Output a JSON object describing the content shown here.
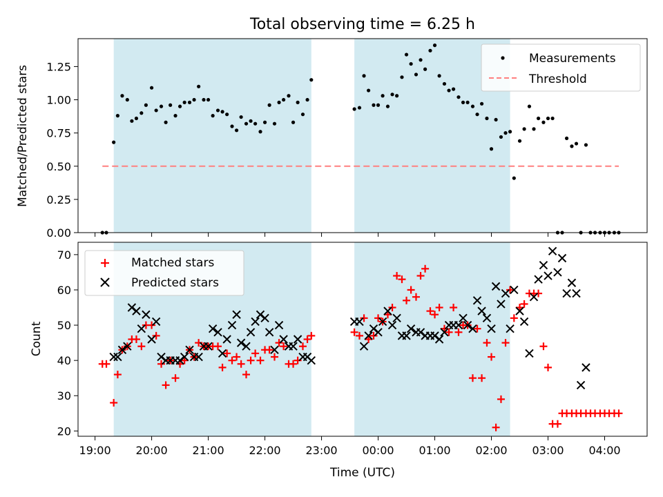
{
  "figure_title": "Total observing time = 6.25 h",
  "colors": {
    "shade": "#add8e6",
    "threshold": "#ff7f7f",
    "measurement": "#000000",
    "matched": "#ff0000",
    "predicted": "#000000"
  },
  "chart_data": [
    {
      "type": "scatter",
      "title": "Total observing time = 6.25 h",
      "ylabel": "Matched/Predicted stars",
      "xlabel": "",
      "ylim": [
        0,
        1.46
      ],
      "yticks": [
        0.0,
        0.25,
        0.5,
        0.75,
        1.0,
        1.25
      ],
      "ytick_labels": [
        "0.00",
        "0.25",
        "0.50",
        "0.75",
        "1.00",
        "1.25"
      ],
      "legend_position": "top-right",
      "series": [
        {
          "name": "Measurements",
          "marker": "dot",
          "x": [
            19.13,
            19.2,
            19.33,
            19.4,
            19.48,
            19.57,
            19.65,
            19.73,
            19.82,
            19.9,
            20.0,
            20.08,
            20.17,
            20.25,
            20.33,
            20.42,
            20.5,
            20.58,
            20.67,
            20.75,
            20.83,
            20.92,
            21.0,
            21.08,
            21.17,
            21.25,
            21.33,
            21.42,
            21.5,
            21.58,
            21.67,
            21.75,
            21.83,
            21.92,
            22.0,
            22.08,
            22.17,
            22.25,
            22.33,
            22.42,
            22.5,
            22.58,
            22.67,
            22.75,
            22.82,
            23.58,
            23.67,
            23.75,
            23.83,
            23.92,
            24.0,
            24.08,
            24.17,
            24.25,
            24.33,
            24.42,
            24.5,
            24.58,
            24.67,
            24.75,
            24.83,
            24.92,
            25.0,
            25.08,
            25.17,
            25.25,
            25.33,
            25.42,
            25.5,
            25.58,
            25.67,
            25.75,
            25.83,
            25.92,
            26.0,
            26.08,
            26.17,
            26.25,
            26.33,
            26.4,
            26.5,
            26.58,
            26.67,
            26.75,
            26.83,
            26.92,
            27.0,
            27.08,
            27.17,
            27.25,
            27.33,
            27.42,
            27.5,
            27.58,
            27.67,
            27.75,
            27.83,
            27.92,
            28.0,
            28.08,
            28.17,
            28.25
          ],
          "y": [
            0.0,
            0.0,
            0.68,
            0.88,
            1.03,
            1.0,
            0.84,
            0.86,
            0.9,
            0.96,
            1.09,
            0.92,
            0.95,
            0.83,
            0.96,
            0.88,
            0.95,
            0.98,
            0.98,
            1.0,
            1.1,
            1.0,
            1.0,
            0.88,
            0.92,
            0.91,
            0.89,
            0.8,
            0.77,
            0.87,
            0.82,
            0.84,
            0.82,
            0.76,
            0.83,
            0.96,
            0.82,
            0.98,
            1.0,
            1.03,
            0.83,
            0.98,
            0.89,
            1.0,
            1.15,
            0.93,
            0.94,
            1.18,
            1.07,
            0.96,
            0.96,
            1.03,
            0.95,
            1.04,
            1.03,
            1.17,
            1.34,
            1.27,
            1.19,
            1.3,
            1.23,
            1.37,
            1.41,
            1.18,
            1.12,
            1.07,
            1.08,
            1.02,
            0.98,
            0.98,
            0.95,
            0.89,
            0.97,
            0.86,
            0.63,
            0.85,
            0.72,
            0.75,
            0.76,
            0.41,
            0.69,
            0.78,
            0.95,
            0.78,
            0.86,
            0.83,
            0.86,
            0.86,
            0.0,
            0.0,
            0.71,
            0.65,
            0.67,
            0.0,
            0.66,
            0.0,
            0.0,
            0.0,
            0.0,
            0.0,
            0.0,
            0.0
          ]
        },
        {
          "name": "Threshold",
          "style": "dashed",
          "x": [
            19.13,
            28.25
          ],
          "y": [
            0.5,
            0.5
          ]
        }
      ]
    },
    {
      "type": "scatter",
      "ylabel": "Count",
      "xlabel": "Time (UTC)",
      "ylim": [
        18.5,
        73.5
      ],
      "yticks": [
        20,
        30,
        40,
        50,
        60,
        70
      ],
      "ytick_labels": [
        "20",
        "30",
        "40",
        "50",
        "60",
        "70"
      ],
      "legend_position": "top-left",
      "series": [
        {
          "name": "Matched stars",
          "marker": "plus",
          "x": [
            19.13,
            19.2,
            19.33,
            19.4,
            19.48,
            19.57,
            19.65,
            19.73,
            19.82,
            19.9,
            20.0,
            20.08,
            20.17,
            20.25,
            20.33,
            20.42,
            20.5,
            20.58,
            20.67,
            20.75,
            20.83,
            20.92,
            21.0,
            21.08,
            21.17,
            21.25,
            21.33,
            21.42,
            21.5,
            21.58,
            21.67,
            21.75,
            21.83,
            21.92,
            22.0,
            22.08,
            22.17,
            22.25,
            22.33,
            22.42,
            22.5,
            22.58,
            22.67,
            22.75,
            22.82,
            23.58,
            23.67,
            23.75,
            23.83,
            23.92,
            24.0,
            24.08,
            24.17,
            24.25,
            24.33,
            24.42,
            24.5,
            24.58,
            24.67,
            24.75,
            24.83,
            24.92,
            25.0,
            25.08,
            25.17,
            25.25,
            25.33,
            25.42,
            25.5,
            25.58,
            25.67,
            25.75,
            25.83,
            25.92,
            26.0,
            26.08,
            26.17,
            26.25,
            26.33,
            26.4,
            26.5,
            26.58,
            26.67,
            26.75,
            26.83,
            26.92,
            27.0,
            27.08,
            27.17,
            27.25,
            27.33,
            27.42,
            27.5,
            27.58,
            27.67,
            27.75,
            27.83,
            27.92,
            28.0,
            28.08,
            28.17,
            28.25
          ],
          "y": [
            39,
            39,
            28,
            36,
            43,
            44,
            46,
            46,
            44,
            50,
            50,
            47,
            39,
            33,
            40,
            35,
            39,
            40,
            43,
            41,
            45,
            44,
            44,
            44,
            44,
            38,
            42,
            40,
            41,
            39,
            36,
            40,
            42,
            40,
            43,
            43,
            41,
            45,
            44,
            39,
            39,
            40,
            44,
            46,
            47,
            48,
            47,
            52,
            46,
            47,
            52,
            51,
            53,
            55,
            64,
            63,
            57,
            60,
            58,
            64,
            66,
            54,
            53,
            55,
            49,
            48,
            55,
            48,
            50,
            50,
            35,
            49,
            35,
            45,
            41,
            21,
            29,
            45,
            60,
            52,
            55,
            56,
            59,
            59,
            59,
            44,
            38,
            22,
            22,
            25,
            25,
            25,
            25,
            25,
            25,
            25,
            25,
            25,
            25,
            25,
            25,
            25
          ],
          "y_note": "counts"
        },
        {
          "name": "Predicted stars",
          "marker": "x",
          "x": [
            19.33,
            19.4,
            19.48,
            19.57,
            19.65,
            19.73,
            19.82,
            19.9,
            20.0,
            20.08,
            20.17,
            20.25,
            20.33,
            20.42,
            20.5,
            20.58,
            20.67,
            20.75,
            20.83,
            20.92,
            21.0,
            21.08,
            21.17,
            21.25,
            21.33,
            21.42,
            21.5,
            21.58,
            21.67,
            21.75,
            21.83,
            21.92,
            22.0,
            22.08,
            22.17,
            22.25,
            22.33,
            22.42,
            22.5,
            22.58,
            22.67,
            22.75,
            22.82,
            23.58,
            23.67,
            23.75,
            23.83,
            23.92,
            24.0,
            24.08,
            24.17,
            24.25,
            24.33,
            24.42,
            24.5,
            24.58,
            24.67,
            24.75,
            24.83,
            24.92,
            25.0,
            25.08,
            25.17,
            25.25,
            25.33,
            25.42,
            25.5,
            25.58,
            25.67,
            25.75,
            25.83,
            25.92,
            26.0,
            26.08,
            26.17,
            26.25,
            26.33,
            26.4,
            26.5,
            26.58,
            26.67,
            26.75,
            26.83,
            26.92,
            27.0,
            27.08,
            27.17,
            27.25,
            27.33,
            27.42,
            27.5,
            27.58,
            27.67
          ],
          "y": [
            41,
            41,
            43,
            44,
            55,
            54,
            49,
            53,
            46,
            51,
            41,
            40,
            40,
            40,
            40,
            41,
            43,
            41,
            41,
            44,
            44,
            49,
            48,
            42,
            46,
            50,
            53,
            45,
            44,
            48,
            51,
            53,
            52,
            48,
            43,
            50,
            46,
            44,
            44,
            46,
            41,
            41,
            40,
            51,
            51,
            44,
            47,
            49,
            48,
            51,
            54,
            50,
            52,
            47,
            47,
            49,
            48,
            48,
            47,
            47,
            47,
            46,
            48,
            50,
            50,
            50,
            52,
            50,
            49,
            57,
            54,
            52,
            49,
            61,
            56,
            59,
            49,
            60,
            54,
            51,
            42,
            58,
            63,
            67,
            64,
            71,
            65,
            69,
            59,
            62,
            59,
            33,
            38
          ]
        }
      ]
    }
  ],
  "shaded_spans": [
    {
      "start": 19.33,
      "end": 22.82
    },
    {
      "start": 23.58,
      "end": 26.33
    }
  ],
  "x_axis": {
    "min": 18.7,
    "max": 28.75,
    "ticks": [
      19,
      20,
      21,
      22,
      23,
      24,
      25,
      26,
      27,
      28
    ],
    "tick_labels": [
      "19:00",
      "20:00",
      "21:00",
      "22:00",
      "23:00",
      "00:00",
      "01:00",
      "02:00",
      "03:00",
      "04:00"
    ],
    "label": "Time (UTC)"
  }
}
